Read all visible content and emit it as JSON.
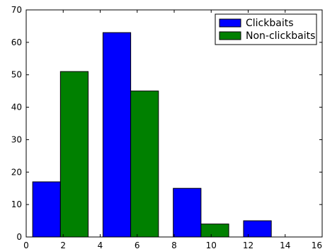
{
  "chart_data": {
    "type": "bar",
    "title": "",
    "xlabel": "",
    "ylabel": "",
    "xlim": [
      0,
      16
    ],
    "ylim": [
      0,
      70
    ],
    "grid": false,
    "legend_position": "top-right",
    "bar_width": 1.5,
    "x_ticks": [
      0,
      2,
      4,
      6,
      8,
      10,
      12,
      14,
      16
    ],
    "y_ticks": [
      0,
      10,
      20,
      30,
      40,
      50,
      60,
      70
    ],
    "series": [
      {
        "name": "Clickbaits",
        "color": "#0000ff",
        "points": [
          {
            "x_start": 0.35,
            "value": 17
          },
          {
            "x_start": 4.15,
            "value": 63
          },
          {
            "x_start": 7.95,
            "value": 15
          },
          {
            "x_start": 11.75,
            "value": 5
          }
        ]
      },
      {
        "name": "Non-clickbaits",
        "color": "#008000",
        "points": [
          {
            "x_start": 1.85,
            "value": 51
          },
          {
            "x_start": 5.65,
            "value": 45
          },
          {
            "x_start": 9.45,
            "value": 4
          },
          {
            "x_start": 13.25,
            "value": 0
          }
        ]
      }
    ]
  }
}
